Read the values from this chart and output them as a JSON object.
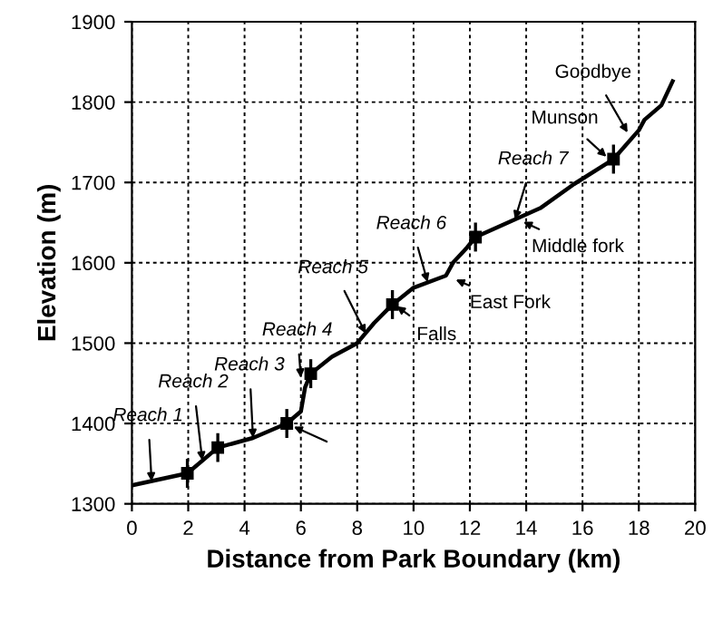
{
  "chart_data": {
    "type": "line",
    "xlabel": "Distance from Park Boundary (km)",
    "ylabel": "Elevation (m)",
    "xlim": [
      0,
      20
    ],
    "ylim": [
      1300,
      1900
    ],
    "xticks": [
      0,
      2,
      4,
      6,
      8,
      10,
      12,
      14,
      16,
      18,
      20
    ],
    "yticks": [
      1300,
      1400,
      1500,
      1600,
      1700,
      1800,
      1900
    ],
    "grid": true,
    "legend": false,
    "line_style": "solid",
    "series": [
      {
        "color": "#000000",
        "x": [
          0,
          1.97,
          3.05,
          4.3,
          5.5,
          6.0,
          6.15,
          6.35,
          7.1,
          8.0,
          8.6,
          9.25,
          10.0,
          11.15,
          11.4,
          11.9,
          12.2,
          14.5,
          15.7,
          17.1,
          18.0,
          18.2,
          18.8,
          19.2
        ],
        "values": [
          1323,
          1338,
          1370,
          1382,
          1400,
          1415,
          1445,
          1462,
          1483,
          1500,
          1525,
          1548,
          1569,
          1584,
          1600,
          1619,
          1632,
          1668,
          1698,
          1729,
          1765,
          1778,
          1796,
          1826
        ]
      },
      {
        "type": "scatter",
        "marker": "square",
        "color": "#000000",
        "x": [
          1.97,
          3.05,
          5.5,
          6.35,
          9.25,
          12.2,
          17.1
        ],
        "values": [
          1338,
          1370,
          1400,
          1462,
          1548,
          1632,
          1729
        ],
        "errors": [
          18,
          18,
          18,
          18,
          18,
          18,
          18
        ]
      }
    ],
    "annotations": [
      {
        "text": "Reach 1",
        "x": 0.7,
        "y": 1328
      },
      {
        "text": "Reach 2",
        "x": 2.5,
        "y": 1354
      },
      {
        "text": "Reach 3",
        "x": 4.3,
        "y": 1382
      },
      {
        "text": "Reach 4",
        "x": 6.0,
        "y": 1457
      },
      {
        "text": "Reach 5",
        "x": 8.3,
        "y": 1512
      },
      {
        "text": "Falls",
        "x": 9.4,
        "y": 1546
      },
      {
        "text": "East Fork",
        "x": 11.5,
        "y": 1579
      },
      {
        "text": "Reach 6",
        "x": 10.5,
        "y": 1576
      },
      {
        "text": "Middle fork",
        "x": 13.9,
        "y": 1651
      },
      {
        "text": "Reach 7",
        "x": 13.6,
        "y": 1654
      },
      {
        "text": "Munson",
        "x": 16.85,
        "y": 1732
      },
      {
        "text": "Goodbye",
        "x": 17.6,
        "y": 1762
      }
    ]
  }
}
